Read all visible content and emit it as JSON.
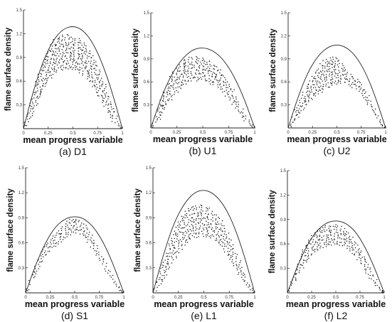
{
  "figure": {
    "ylabel": "flame surface density",
    "xlabel": "mean progress variable"
  },
  "chart_data": [
    {
      "id": "D1",
      "type": "scatter",
      "caption": "(a) D1",
      "xlabel": "mean progress variable",
      "ylabel": "flame surface density",
      "xlim": [
        0,
        1
      ],
      "ylim": [
        0,
        1.5
      ],
      "xticks": [
        "0",
        "0.25",
        "0.5",
        "0.75",
        "1"
      ],
      "yticks": [
        "0.3",
        "0.6",
        "0.9",
        "1.2",
        "1.5"
      ],
      "envelope": {
        "x": [
          0,
          0.1,
          0.2,
          0.3,
          0.4,
          0.5,
          0.6,
          0.7,
          0.8,
          0.9,
          1
        ],
        "y": [
          0,
          0.48,
          0.86,
          1.12,
          1.26,
          1.3,
          1.25,
          1.09,
          0.82,
          0.45,
          0
        ]
      },
      "scatter_x": [
        0.02,
        0.05,
        0.08,
        0.1,
        0.13,
        0.16,
        0.19,
        0.22,
        0.25,
        0.28,
        0.31,
        0.34,
        0.37,
        0.4,
        0.43,
        0.46,
        0.49,
        0.52,
        0.55,
        0.58,
        0.61,
        0.64,
        0.67,
        0.7,
        0.73,
        0.76,
        0.79,
        0.82,
        0.85,
        0.88,
        0.91,
        0.94,
        0.97,
        0.99
      ],
      "scatter_y_upper": [
        0.08,
        0.22,
        0.36,
        0.46,
        0.6,
        0.72,
        0.83,
        0.93,
        1.01,
        1.08,
        1.13,
        1.16,
        1.18,
        1.19,
        1.19,
        1.18,
        1.17,
        1.16,
        1.14,
        1.12,
        1.09,
        1.05,
        1.0,
        0.93,
        0.85,
        0.76,
        0.66,
        0.56,
        0.46,
        0.36,
        0.26,
        0.16,
        0.07,
        0.02
      ],
      "scatter_y_lower": [
        0.02,
        0.08,
        0.14,
        0.2,
        0.28,
        0.36,
        0.44,
        0.52,
        0.59,
        0.64,
        0.68,
        0.71,
        0.73,
        0.74,
        0.74,
        0.74,
        0.73,
        0.73,
        0.72,
        0.7,
        0.67,
        0.63,
        0.58,
        0.52,
        0.46,
        0.39,
        0.32,
        0.26,
        0.2,
        0.14,
        0.09,
        0.05,
        0.02,
        0.0
      ]
    },
    {
      "id": "U1",
      "type": "scatter",
      "caption": "(b) U1",
      "xlabel": "mean progress variable",
      "ylabel": "flame surface density",
      "xlim": [
        0,
        1
      ],
      "ylim": [
        0,
        1.5
      ],
      "xticks": [
        "0",
        "0.25",
        "0.5",
        "0.75",
        "1"
      ],
      "yticks": [
        "0.3",
        "0.6",
        "0.9",
        "1.2",
        "1.5"
      ],
      "envelope": {
        "x": [
          0,
          0.1,
          0.2,
          0.3,
          0.4,
          0.5,
          0.6,
          0.7,
          0.8,
          0.9,
          1
        ],
        "y": [
          0,
          0.4,
          0.7,
          0.9,
          1.02,
          1.05,
          1.01,
          0.89,
          0.68,
          0.38,
          0
        ]
      },
      "scatter_x": [
        0.02,
        0.05,
        0.08,
        0.1,
        0.13,
        0.16,
        0.19,
        0.22,
        0.25,
        0.28,
        0.31,
        0.34,
        0.37,
        0.4,
        0.43,
        0.46,
        0.49,
        0.52,
        0.55,
        0.58,
        0.61,
        0.64,
        0.67,
        0.7,
        0.73,
        0.76,
        0.79,
        0.82,
        0.85,
        0.88,
        0.91,
        0.94,
        0.97,
        0.99
      ],
      "scatter_y_upper": [
        0.06,
        0.18,
        0.3,
        0.38,
        0.49,
        0.58,
        0.67,
        0.74,
        0.8,
        0.84,
        0.88,
        0.9,
        0.92,
        0.93,
        0.93,
        0.93,
        0.92,
        0.91,
        0.89,
        0.87,
        0.84,
        0.8,
        0.76,
        0.71,
        0.65,
        0.58,
        0.5,
        0.42,
        0.34,
        0.26,
        0.18,
        0.11,
        0.05,
        0.01
      ],
      "scatter_y_lower": [
        0.01,
        0.06,
        0.11,
        0.16,
        0.22,
        0.29,
        0.35,
        0.41,
        0.46,
        0.5,
        0.54,
        0.57,
        0.59,
        0.6,
        0.61,
        0.61,
        0.61,
        0.6,
        0.59,
        0.57,
        0.55,
        0.52,
        0.49,
        0.45,
        0.4,
        0.35,
        0.29,
        0.24,
        0.18,
        0.13,
        0.09,
        0.05,
        0.02,
        0.0
      ]
    },
    {
      "id": "U2",
      "type": "scatter",
      "caption": "(c) U2",
      "xlabel": "mean progress variable",
      "ylabel": "flame surface density",
      "xlim": [
        0,
        1
      ],
      "ylim": [
        0,
        1.5
      ],
      "xticks": [
        "0",
        "0.25",
        "0.5",
        "0.75",
        "1"
      ],
      "yticks": [
        "0.3",
        "0.6",
        "0.9",
        "1.2",
        "1.5"
      ],
      "envelope": {
        "x": [
          0,
          0.1,
          0.2,
          0.3,
          0.4,
          0.5,
          0.6,
          0.7,
          0.8,
          0.9,
          1
        ],
        "y": [
          0,
          0.4,
          0.72,
          0.93,
          1.05,
          1.09,
          1.05,
          0.93,
          0.71,
          0.39,
          0
        ]
      },
      "scatter_x": [
        0.02,
        0.05,
        0.08,
        0.1,
        0.13,
        0.16,
        0.19,
        0.22,
        0.25,
        0.28,
        0.31,
        0.34,
        0.37,
        0.4,
        0.43,
        0.46,
        0.49,
        0.52,
        0.55,
        0.58,
        0.61,
        0.64,
        0.67,
        0.7,
        0.73,
        0.76,
        0.79,
        0.82,
        0.85,
        0.88,
        0.91,
        0.94,
        0.97,
        0.99
      ],
      "scatter_y_upper": [
        0.05,
        0.15,
        0.24,
        0.3,
        0.39,
        0.47,
        0.55,
        0.62,
        0.68,
        0.74,
        0.79,
        0.84,
        0.88,
        0.91,
        0.93,
        0.94,
        0.93,
        0.9,
        0.85,
        0.8,
        0.74,
        0.7,
        0.67,
        0.65,
        0.62,
        0.57,
        0.5,
        0.43,
        0.35,
        0.27,
        0.19,
        0.12,
        0.05,
        0.01
      ],
      "scatter_y_lower": [
        0.01,
        0.05,
        0.09,
        0.13,
        0.18,
        0.23,
        0.28,
        0.32,
        0.36,
        0.4,
        0.43,
        0.46,
        0.49,
        0.51,
        0.53,
        0.55,
        0.56,
        0.57,
        0.57,
        0.57,
        0.56,
        0.54,
        0.52,
        0.5,
        0.46,
        0.41,
        0.35,
        0.29,
        0.23,
        0.17,
        0.11,
        0.06,
        0.02,
        0.0
      ]
    },
    {
      "id": "S1",
      "type": "scatter",
      "caption": "(d) S1",
      "xlabel": "mean progress variable",
      "ylabel": "flame surface density",
      "xlim": [
        0,
        1
      ],
      "ylim": [
        0,
        1.5
      ],
      "xticks": [
        "0",
        "0.25",
        "0.5",
        "0.75",
        "1"
      ],
      "yticks": [
        "0.3",
        "0.6",
        "0.9",
        "1.2",
        "1.5"
      ],
      "envelope": {
        "x": [
          0,
          0.1,
          0.2,
          0.3,
          0.4,
          0.5,
          0.6,
          0.7,
          0.8,
          0.9,
          1
        ],
        "y": [
          0,
          0.33,
          0.6,
          0.79,
          0.89,
          0.92,
          0.89,
          0.78,
          0.59,
          0.32,
          0
        ]
      },
      "scatter_x": [
        0.02,
        0.05,
        0.08,
        0.1,
        0.13,
        0.16,
        0.19,
        0.22,
        0.25,
        0.28,
        0.31,
        0.34,
        0.37,
        0.4,
        0.43,
        0.46,
        0.49,
        0.52,
        0.55,
        0.58,
        0.61,
        0.64,
        0.67,
        0.7,
        0.73,
        0.76,
        0.79,
        0.82,
        0.85,
        0.88,
        0.91,
        0.94,
        0.97,
        0.99
      ],
      "scatter_y_upper": [
        0.05,
        0.16,
        0.26,
        0.33,
        0.42,
        0.5,
        0.57,
        0.62,
        0.66,
        0.69,
        0.72,
        0.76,
        0.8,
        0.84,
        0.87,
        0.89,
        0.9,
        0.9,
        0.88,
        0.85,
        0.81,
        0.76,
        0.7,
        0.64,
        0.57,
        0.5,
        0.43,
        0.36,
        0.29,
        0.22,
        0.15,
        0.09,
        0.04,
        0.01
      ],
      "scatter_y_lower": [
        0.02,
        0.09,
        0.16,
        0.21,
        0.28,
        0.35,
        0.41,
        0.46,
        0.5,
        0.53,
        0.55,
        0.58,
        0.61,
        0.64,
        0.67,
        0.69,
        0.71,
        0.71,
        0.7,
        0.68,
        0.64,
        0.6,
        0.55,
        0.5,
        0.44,
        0.38,
        0.32,
        0.26,
        0.2,
        0.15,
        0.1,
        0.06,
        0.02,
        0.0
      ]
    },
    {
      "id": "L1",
      "type": "scatter",
      "caption": "(e) L1",
      "xlabel": "mean progress variable",
      "ylabel": "flame surface density",
      "xlim": [
        0,
        1
      ],
      "ylim": [
        0,
        1.5
      ],
      "xticks": [
        "0",
        "0.25",
        "0.5",
        "0.75",
        "1"
      ],
      "yticks": [
        "0.3",
        "0.6",
        "0.9",
        "1.2",
        "1.5"
      ],
      "envelope": {
        "x": [
          0,
          0.1,
          0.2,
          0.3,
          0.4,
          0.5,
          0.6,
          0.7,
          0.8,
          0.9,
          1
        ],
        "y": [
          0,
          0.45,
          0.82,
          1.06,
          1.2,
          1.24,
          1.19,
          1.05,
          0.8,
          0.44,
          0
        ]
      },
      "scatter_x": [
        0.02,
        0.05,
        0.08,
        0.1,
        0.13,
        0.16,
        0.19,
        0.22,
        0.25,
        0.28,
        0.31,
        0.34,
        0.37,
        0.4,
        0.43,
        0.46,
        0.49,
        0.52,
        0.55,
        0.58,
        0.61,
        0.64,
        0.67,
        0.7,
        0.73,
        0.76,
        0.79,
        0.82,
        0.85,
        0.88,
        0.91,
        0.94,
        0.97,
        0.99
      ],
      "scatter_y_upper": [
        0.06,
        0.18,
        0.3,
        0.38,
        0.49,
        0.6,
        0.7,
        0.79,
        0.87,
        0.93,
        0.98,
        1.01,
        1.04,
        1.05,
        1.06,
        1.06,
        1.05,
        1.04,
        1.02,
        1.0,
        0.96,
        0.92,
        0.87,
        0.81,
        0.74,
        0.66,
        0.58,
        0.49,
        0.4,
        0.31,
        0.22,
        0.14,
        0.06,
        0.01
      ],
      "scatter_y_lower": [
        0.01,
        0.05,
        0.1,
        0.15,
        0.21,
        0.28,
        0.35,
        0.41,
        0.47,
        0.52,
        0.56,
        0.6,
        0.63,
        0.65,
        0.66,
        0.67,
        0.67,
        0.67,
        0.66,
        0.64,
        0.61,
        0.58,
        0.54,
        0.49,
        0.44,
        0.38,
        0.32,
        0.26,
        0.2,
        0.14,
        0.09,
        0.05,
        0.02,
        0.0
      ]
    },
    {
      "id": "L2",
      "type": "scatter",
      "caption": "(f) L2",
      "xlabel": "mean progress variable",
      "ylabel": "flame surface density",
      "xlim": [
        0,
        1
      ],
      "ylim": [
        0,
        1.5
      ],
      "xticks": [
        "0",
        "0.25",
        "0.5",
        "0.75",
        "1"
      ],
      "yticks": [
        "0.3",
        "0.6",
        "0.9",
        "1.2",
        "1.5"
      ],
      "envelope": {
        "x": [
          0,
          0.1,
          0.2,
          0.3,
          0.4,
          0.5,
          0.6,
          0.7,
          0.8,
          0.9,
          1
        ],
        "y": [
          0,
          0.32,
          0.58,
          0.76,
          0.86,
          0.89,
          0.86,
          0.76,
          0.57,
          0.31,
          0
        ]
      },
      "scatter_x": [
        0.02,
        0.05,
        0.08,
        0.1,
        0.13,
        0.16,
        0.19,
        0.22,
        0.25,
        0.28,
        0.31,
        0.34,
        0.37,
        0.4,
        0.43,
        0.46,
        0.49,
        0.52,
        0.55,
        0.58,
        0.61,
        0.64,
        0.67,
        0.7,
        0.73,
        0.76,
        0.79,
        0.82,
        0.85,
        0.88,
        0.91,
        0.94,
        0.97,
        0.99
      ],
      "scatter_y_upper": [
        0.06,
        0.18,
        0.29,
        0.36,
        0.45,
        0.53,
        0.6,
        0.66,
        0.71,
        0.75,
        0.78,
        0.8,
        0.82,
        0.83,
        0.84,
        0.84,
        0.84,
        0.83,
        0.82,
        0.8,
        0.77,
        0.74,
        0.7,
        0.65,
        0.59,
        0.53,
        0.46,
        0.39,
        0.32,
        0.24,
        0.17,
        0.1,
        0.04,
        0.01
      ],
      "scatter_y_lower": [
        0.02,
        0.07,
        0.13,
        0.18,
        0.24,
        0.3,
        0.36,
        0.41,
        0.45,
        0.48,
        0.51,
        0.53,
        0.55,
        0.56,
        0.57,
        0.58,
        0.58,
        0.58,
        0.57,
        0.56,
        0.54,
        0.51,
        0.48,
        0.44,
        0.39,
        0.34,
        0.29,
        0.23,
        0.18,
        0.13,
        0.08,
        0.05,
        0.02,
        0.0
      ]
    }
  ]
}
